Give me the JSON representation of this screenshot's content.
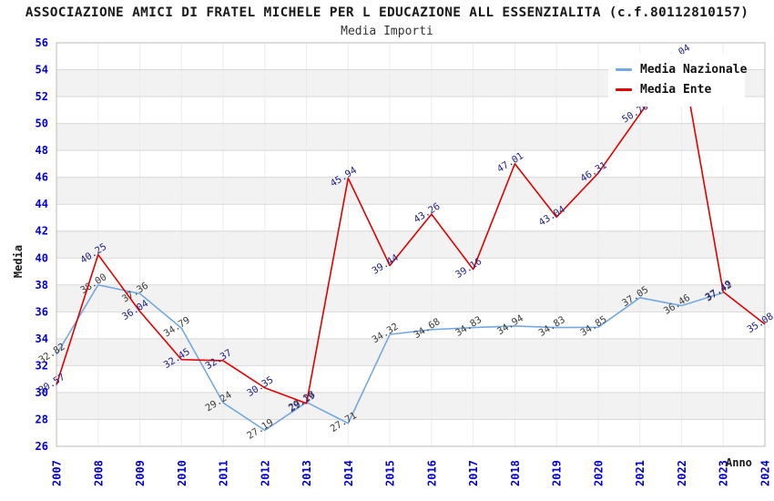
{
  "title": "ASSOCIAZIONE AMICI DI FRATEL MICHELE PER L EDUCAZIONE ALL ESSENZIALITA (c.f.80112810157)",
  "subtitle": "Media Importi",
  "colors": {
    "tick_blue": "#0000cc",
    "grid_line": "#d9d9d9",
    "band_gray": "#f2f2f2",
    "band_white": "#ffffff",
    "plot_border": "#bbbbbb",
    "nazionale_line": "#74a9e0",
    "ente_line": "#e00000",
    "nazionale_label": "#3c3c3c",
    "ente_label": "#232388"
  },
  "chart_data": {
    "type": "line",
    "title": "Media Importi",
    "xlabel": "Anno",
    "ylabel": "Media",
    "x": [
      2007,
      2008,
      2009,
      2010,
      2011,
      2012,
      2013,
      2014,
      2015,
      2016,
      2017,
      2018,
      2019,
      2020,
      2021,
      2022,
      2023,
      2024
    ],
    "ylim": [
      26,
      56
    ],
    "ytick_step": 2,
    "grid": true,
    "legend_position": "top-right",
    "series": [
      {
        "name": "Media Nazionale",
        "color": "#74a9e0",
        "label_color": "#3c3c3c",
        "x": [
          2007,
          2008,
          2009,
          2010,
          2011,
          2012,
          2013,
          2014,
          2015,
          2016,
          2017,
          2018,
          2019,
          2020,
          2021,
          2022,
          2023
        ],
        "values": [
          32.82,
          38.0,
          37.36,
          34.79,
          29.24,
          27.19,
          29.28,
          27.71,
          34.32,
          34.68,
          34.83,
          34.94,
          34.83,
          34.85,
          37.05,
          36.46,
          37.42
        ]
      },
      {
        "name": "Media Ente",
        "color": "#e00000",
        "label_color": "#232388",
        "x": [
          2007,
          2008,
          2009,
          2010,
          2011,
          2012,
          2013,
          2014,
          2015,
          2016,
          2017,
          2018,
          2019,
          2020,
          2021,
          2022,
          2023,
          2024
        ],
        "values": [
          30.57,
          40.25,
          36.04,
          32.45,
          32.37,
          30.35,
          29.19,
          45.94,
          39.44,
          43.26,
          39.16,
          47.01,
          43.04,
          46.31,
          50.7,
          55.04,
          37.49,
          35.08
        ]
      }
    ]
  }
}
